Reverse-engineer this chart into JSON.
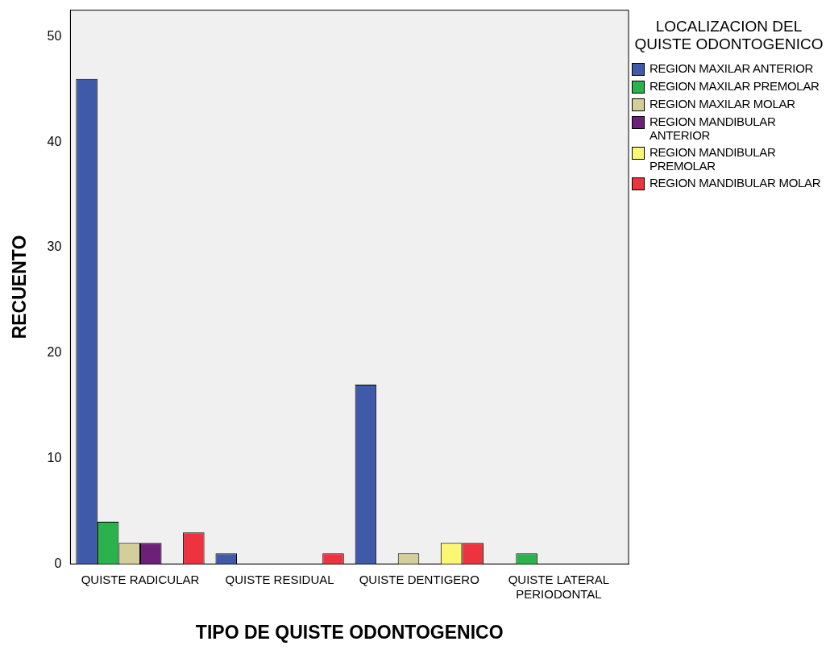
{
  "chart_data": {
    "type": "bar",
    "xlabel": "TIPO DE QUISTE ODONTOGENICO",
    "ylabel": "RECUENTO",
    "legend_title": "LOCALIZACION DEL QUISTE ODONTOGENICO",
    "categories": [
      "QUISTE RADICULAR",
      "QUISTE RESIDUAL",
      "QUISTE DENTIGERO",
      "QUISTE LATERAL PERIODONTAL"
    ],
    "series": [
      {
        "name": "REGION MAXILAR ANTERIOR",
        "color": "#3e5aa8",
        "values": [
          46,
          1,
          17,
          0
        ]
      },
      {
        "name": "REGION MAXILAR PREMOLAR",
        "color": "#2bb24c",
        "values": [
          4,
          0,
          0,
          1
        ]
      },
      {
        "name": "REGION MAXILAR MOLAR",
        "color": "#d4cf9a",
        "values": [
          2,
          0,
          1,
          0
        ]
      },
      {
        "name": "REGION MANDIBULAR ANTERIOR",
        "color": "#6d2077",
        "values": [
          2,
          0,
          0,
          0
        ]
      },
      {
        "name": "REGION MANDIBULAR PREMOLAR",
        "color": "#fbf772",
        "values": [
          0,
          0,
          2,
          0
        ]
      },
      {
        "name": "REGION MANDIBULAR MOLAR",
        "color": "#ee3340",
        "values": [
          3,
          1,
          2,
          0
        ]
      }
    ],
    "ylim": [
      0,
      52.5
    ],
    "yticks": [
      0,
      10,
      20,
      30,
      40,
      50
    ],
    "grid": false,
    "legend": "right"
  }
}
